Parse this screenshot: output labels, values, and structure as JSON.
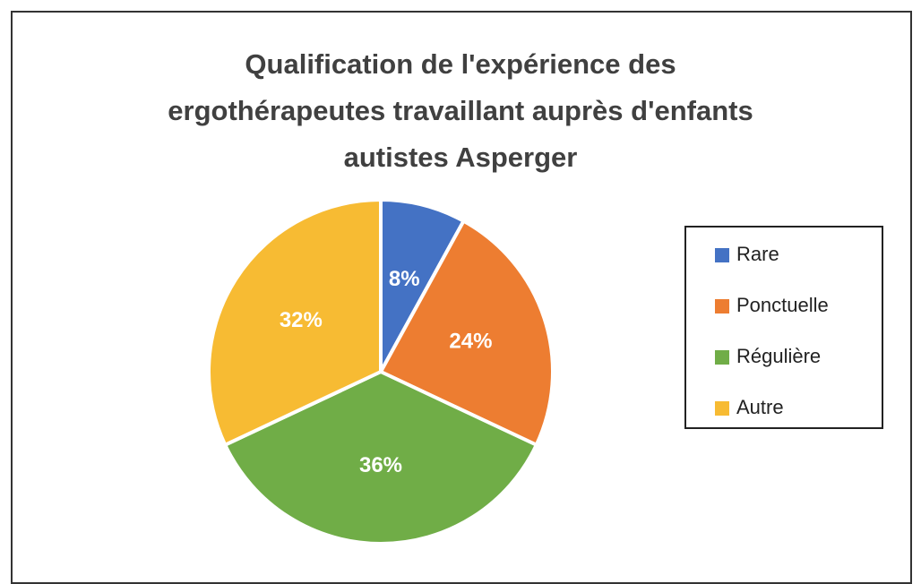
{
  "chart_data": {
    "type": "pie",
    "title": "Qualification de l'expérience des ergothérapeutes travaillant auprès d'enfants autistes Asperger",
    "categories": [
      "Rare",
      "Ponctuelle",
      "Régulière",
      "Autre"
    ],
    "values": [
      8,
      24,
      36,
      32
    ],
    "value_labels": [
      "8%",
      "24%",
      "36%",
      "32%"
    ],
    "colors": [
      "#4472c4",
      "#ed7d31",
      "#70ad47",
      "#f7bb33"
    ],
    "legend": "right"
  }
}
